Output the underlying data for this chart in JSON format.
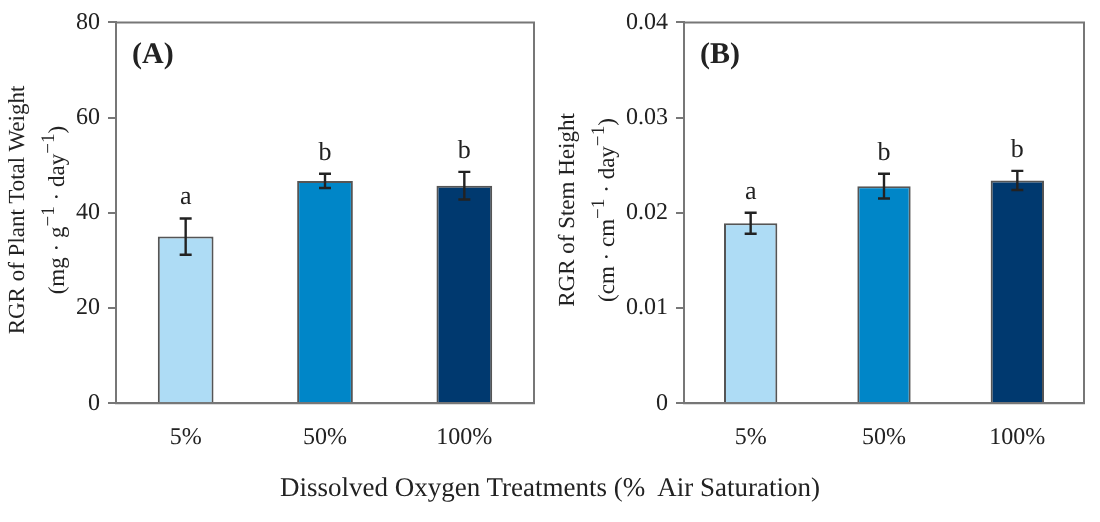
{
  "chart_data": [
    {
      "type": "bar",
      "xlabel": "Dissolved Oxygen Treatments (%  Air Saturation)",
      "ylabel": "RGR of Plant Total Weight\n(mg · g$^{−1}$ · day$^{−1}$)",
      "categories": [
        "5%",
        "50%",
        "100%"
      ],
      "values": [
        35,
        46.7,
        45.7
      ],
      "errors": [
        3.8,
        1.5,
        2.9
      ],
      "colors": [
        "#aedcf5",
        "#0086c8",
        "#00396f"
      ],
      "ylim": [
        0,
        80
      ],
      "yticks": [
        0,
        20,
        40,
        60,
        80
      ],
      "grid": false,
      "annotations": [
        "(A)",
        {
          "text": "a",
          "x": "5%",
          "y": 38.8
        },
        {
          "text": "b",
          "x": "50%",
          "y": 48.2
        },
        {
          "text": "b",
          "x": "100%",
          "y": 48.6
        }
      ]
    },
    {
      "type": "bar",
      "ylabel": "RGR of Stem Height\n(cm · cm$^{−1}$ · day$^{−1}$)",
      "categories": [
        "5%",
        "50%",
        "100%"
      ],
      "values": [
        0.0189,
        0.0228,
        0.0234
      ],
      "errors": [
        0.0011,
        0.0013,
        0.001
      ],
      "colors": [
        "#aedcf5",
        "#0086c8",
        "#00396f"
      ],
      "ylim": [
        0,
        0.04
      ],
      "yticks": [
        0,
        0.01,
        0.02,
        0.03,
        0.04
      ],
      "grid": false,
      "annotations": [
        "(B)",
        {
          "text": "a",
          "x": "5%",
          "y": 0.02
        },
        {
          "text": "b",
          "x": "50%",
          "y": 0.0241
        },
        {
          "text": "b",
          "x": "100%",
          "y": 0.0244
        }
      ]
    }
  ]
}
